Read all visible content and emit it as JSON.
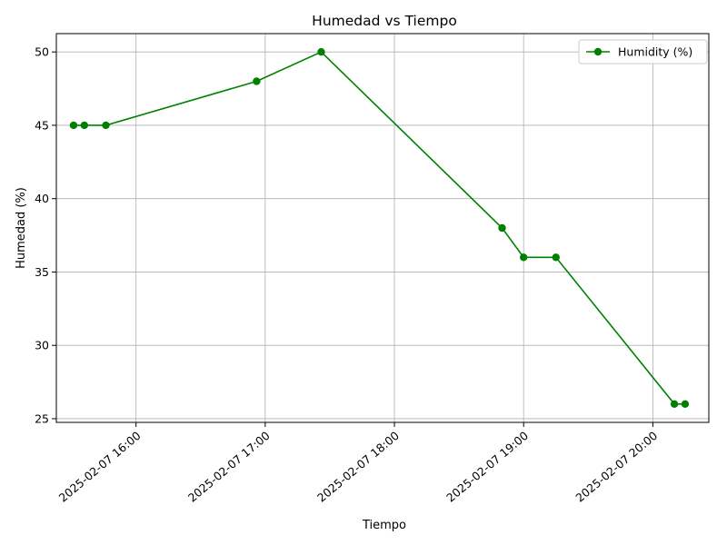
{
  "chart_data": {
    "type": "line",
    "title": "Humedad vs Tiempo",
    "xlabel": "Tiempo",
    "ylabel": "Humedad (%)",
    "x_is_datetime": true,
    "xlim": [
      "2025-02-07 15:23",
      "2025-02-07 20:26"
    ],
    "ylim": [
      24.75,
      51.25
    ],
    "yticks": [
      25,
      30,
      35,
      40,
      45,
      50
    ],
    "xticks": [
      "2025-02-07 16:00",
      "2025-02-07 17:00",
      "2025-02-07 18:00",
      "2025-02-07 19:00",
      "2025-02-07 20:00"
    ],
    "grid": true,
    "legend_position": "top-right",
    "series": [
      {
        "name": "Humidity (%)",
        "color": "#008000",
        "marker": "circle",
        "x": [
          "2025-02-07 15:31",
          "2025-02-07 15:36",
          "2025-02-07 15:46",
          "2025-02-07 16:56",
          "2025-02-07 17:26",
          "2025-02-07 18:50",
          "2025-02-07 19:00",
          "2025-02-07 19:15",
          "2025-02-07 20:10",
          "2025-02-07 20:15"
        ],
        "values": [
          45,
          45,
          45,
          48,
          50,
          38,
          36,
          36,
          26,
          26
        ]
      }
    ]
  }
}
